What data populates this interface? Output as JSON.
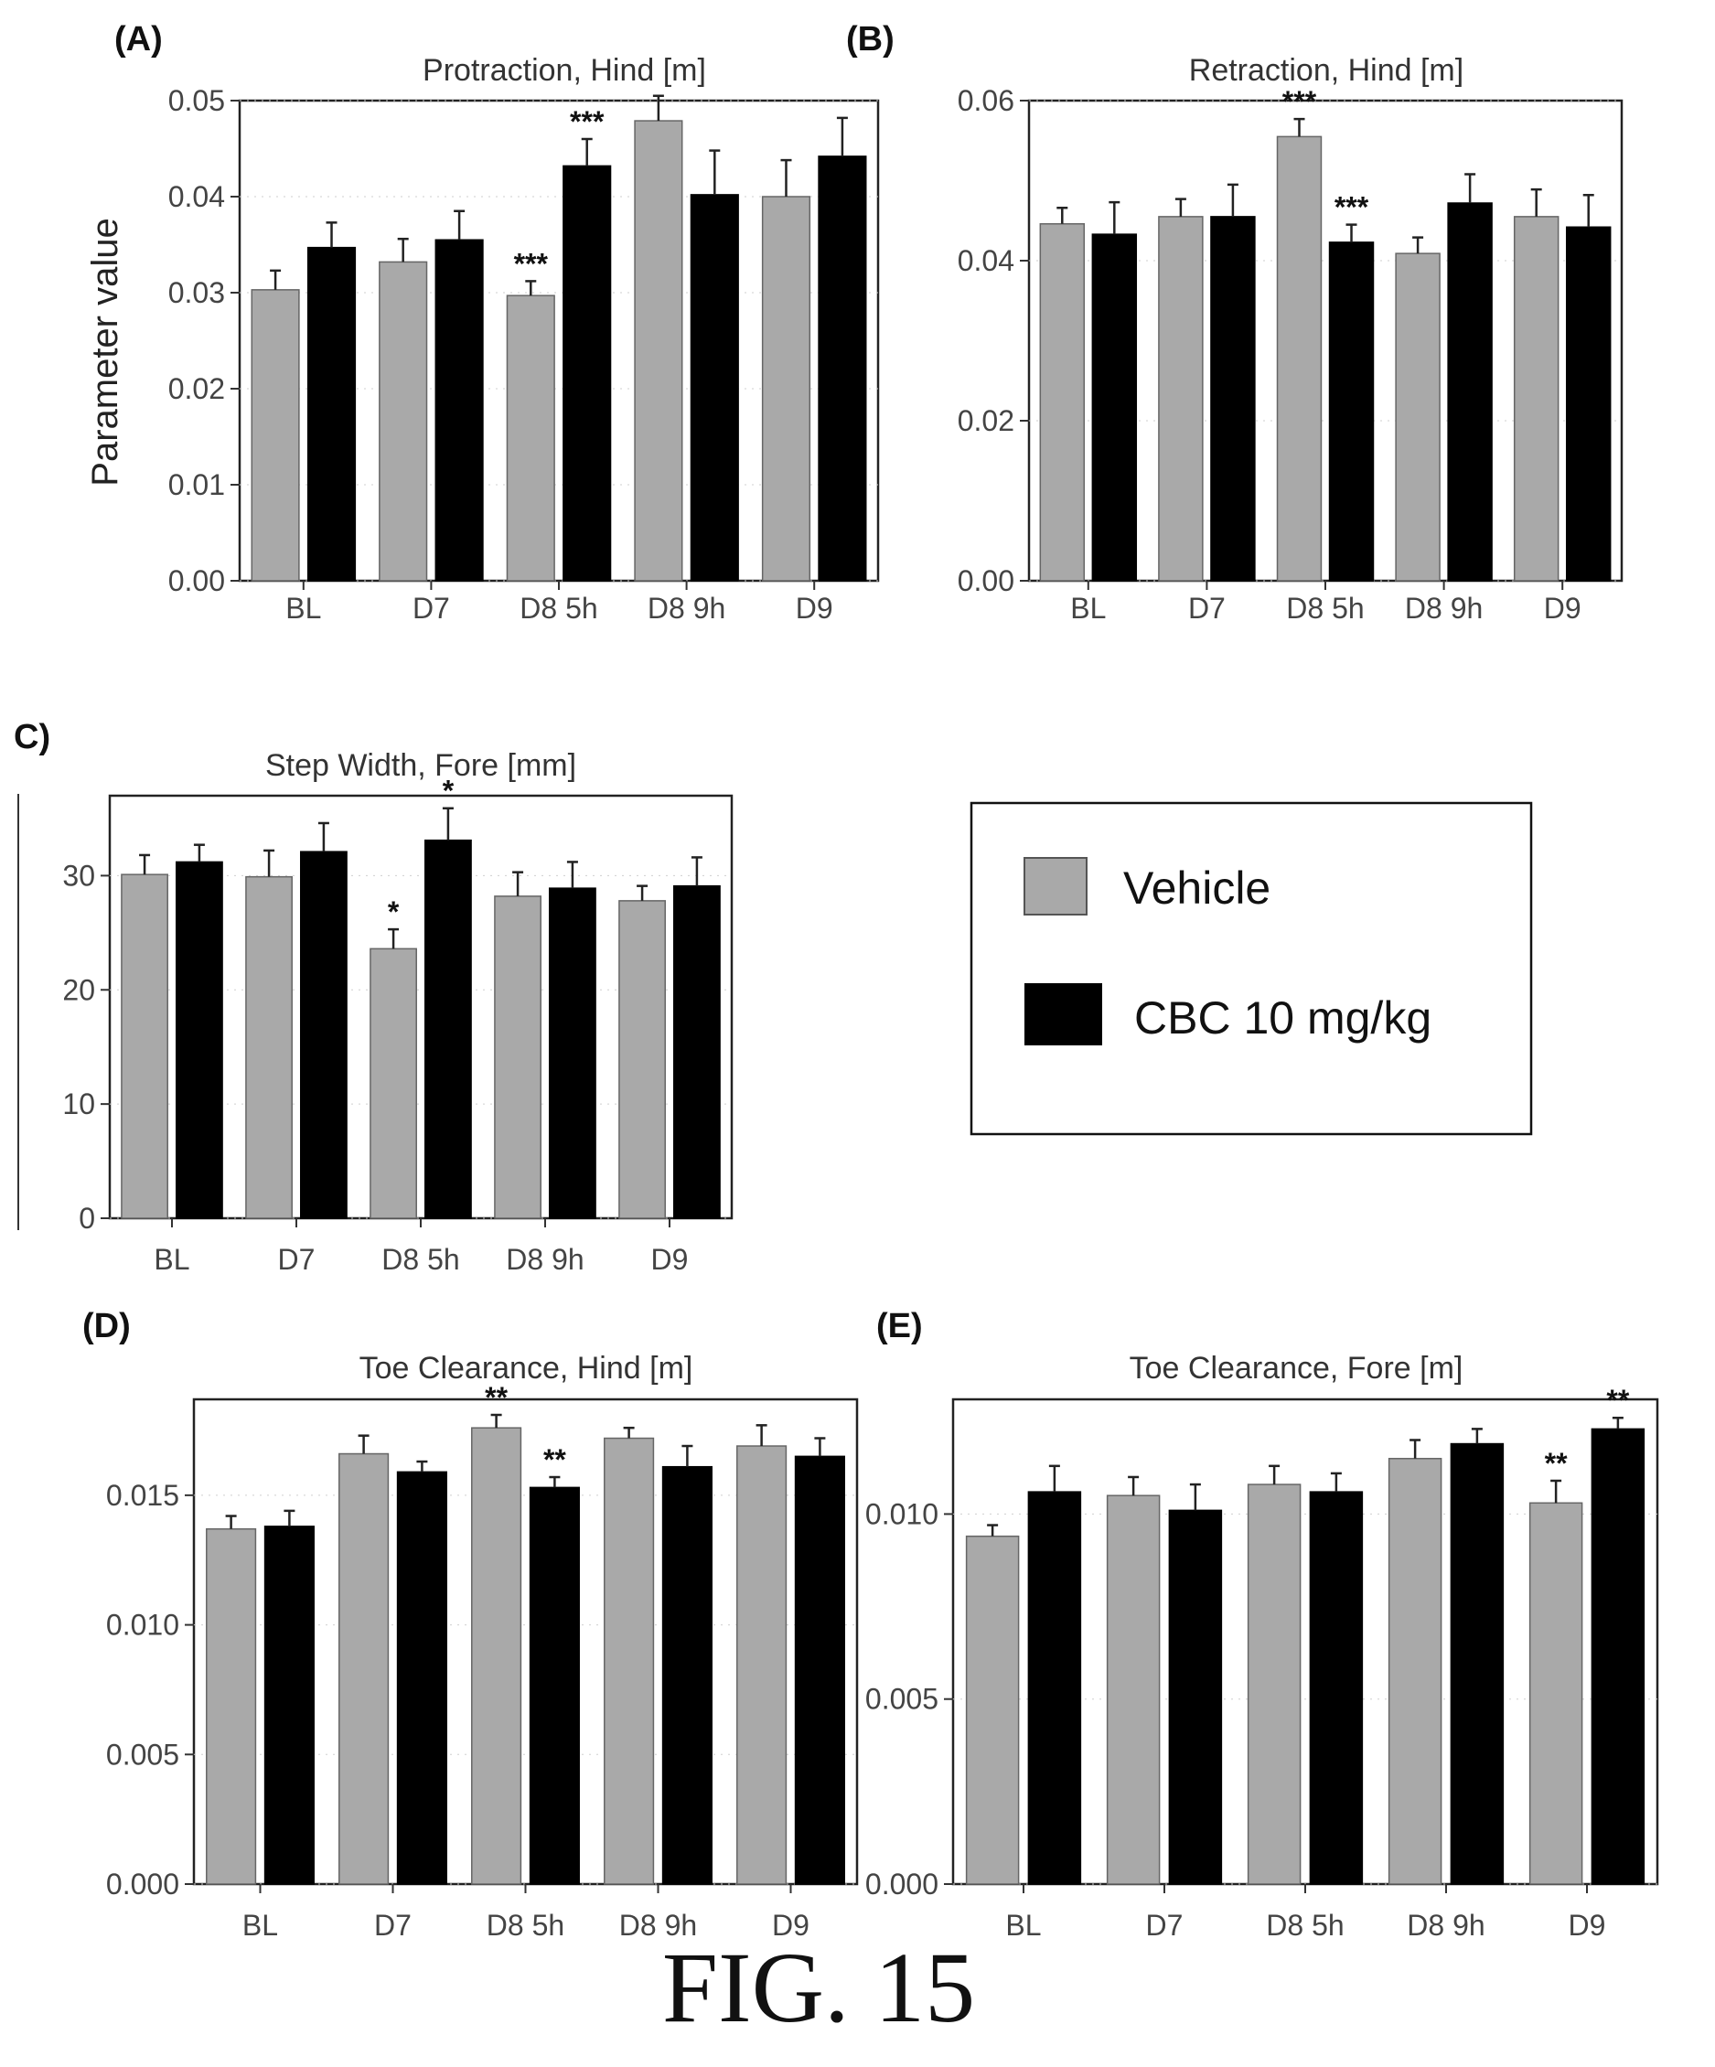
{
  "figure_caption": "FIG. 15",
  "legend": {
    "items": [
      {
        "label": "Vehicle",
        "color": "#a9a9a9"
      },
      {
        "label": "CBC 10 mg/kg",
        "color": "#000000"
      }
    ]
  },
  "colors": {
    "vehicle": "#a9a9a9",
    "cbc": "#000000"
  },
  "chart_data": [
    {
      "type": "bar",
      "panel": "(A)",
      "title": "Protraction, Hind [m]",
      "ylabel": "Parameter value",
      "categories": [
        "BL",
        "D7",
        "D8 5h",
        "D8 9h",
        "D9"
      ],
      "yticks": [
        "0.00",
        "0.01",
        "0.02",
        "0.03",
        "0.04",
        "0.05"
      ],
      "ylim": [
        0,
        0.05
      ],
      "series": [
        {
          "name": "Vehicle",
          "values": [
            0.0303,
            0.0332,
            0.0297,
            0.0479,
            0.04
          ],
          "errors": [
            0.002,
            0.0024,
            0.0015,
            0.0026,
            0.0038
          ],
          "sig": [
            "",
            "",
            "***",
            "",
            ""
          ]
        },
        {
          "name": "CBC 10 mg/kg",
          "values": [
            0.0347,
            0.0355,
            0.0432,
            0.0402,
            0.0442
          ],
          "errors": [
            0.0026,
            0.003,
            0.0028,
            0.0046,
            0.004
          ],
          "sig": [
            "",
            "",
            "***",
            "",
            ""
          ]
        }
      ]
    },
    {
      "type": "bar",
      "panel": "(B)",
      "title": "Retraction, Hind [m]",
      "ylabel": "",
      "categories": [
        "BL",
        "D7",
        "D8 5h",
        "D8 9h",
        "D9"
      ],
      "yticks": [
        "0.00",
        "0.02",
        "0.04",
        "0.06"
      ],
      "ylim": [
        0,
        0.06
      ],
      "series": [
        {
          "name": "Vehicle",
          "values": [
            0.0446,
            0.0455,
            0.0555,
            0.0409,
            0.0455
          ],
          "errors": [
            0.002,
            0.0022,
            0.0022,
            0.002,
            0.0034
          ],
          "sig": [
            "",
            "",
            "***",
            "",
            ""
          ]
        },
        {
          "name": "CBC 10 mg/kg",
          "values": [
            0.0433,
            0.0455,
            0.0423,
            0.0472,
            0.0442
          ],
          "errors": [
            0.004,
            0.004,
            0.0022,
            0.0036,
            0.004
          ],
          "sig": [
            "",
            "",
            "***",
            "",
            ""
          ]
        }
      ]
    },
    {
      "type": "bar",
      "panel": "C)",
      "title": "Step Width, Fore [mm]",
      "ylabel": "",
      "categories": [
        "BL",
        "D7",
        "D8 5h",
        "D8 9h",
        "D9"
      ],
      "yticks": [
        "0",
        "10",
        "20",
        "30"
      ],
      "ylim": [
        0,
        37
      ],
      "series": [
        {
          "name": "Vehicle",
          "values": [
            30.1,
            29.9,
            23.6,
            28.2,
            27.8
          ],
          "errors": [
            1.7,
            2.3,
            1.7,
            2.1,
            1.3
          ],
          "sig": [
            "",
            "",
            "*",
            "",
            ""
          ]
        },
        {
          "name": "CBC 10 mg/kg",
          "values": [
            31.2,
            32.1,
            33.1,
            28.9,
            29.1
          ],
          "errors": [
            1.5,
            2.5,
            2.8,
            2.3,
            2.5
          ],
          "sig": [
            "",
            "",
            "*",
            "",
            ""
          ]
        }
      ]
    },
    {
      "type": "bar",
      "panel": "(D)",
      "title": "Toe Clearance, Hind [m]",
      "ylabel": "",
      "categories": [
        "BL",
        "D7",
        "D8 5h",
        "D8 9h",
        "D9"
      ],
      "yticks": [
        "0.000",
        "0.005",
        "0.010",
        "0.015"
      ],
      "ylim": [
        0,
        0.0187
      ],
      "series": [
        {
          "name": "Vehicle",
          "values": [
            0.0137,
            0.0166,
            0.0176,
            0.0172,
            0.0169
          ],
          "errors": [
            0.0005,
            0.0007,
            0.0005,
            0.0004,
            0.0008
          ],
          "sig": [
            "",
            "",
            "**",
            "",
            ""
          ]
        },
        {
          "name": "CBC 10 mg/kg",
          "values": [
            0.0138,
            0.0159,
            0.0153,
            0.0161,
            0.0165
          ],
          "errors": [
            0.0006,
            0.0004,
            0.0004,
            0.0008,
            0.0007
          ],
          "sig": [
            "",
            "",
            "**",
            "",
            ""
          ]
        }
      ]
    },
    {
      "type": "bar",
      "panel": "(E)",
      "title": "Toe Clearance, Fore [m]",
      "ylabel": "",
      "categories": [
        "BL",
        "D7",
        "D8 5h",
        "D8 9h",
        "D9"
      ],
      "yticks": [
        "0.000",
        "0.005",
        "0.010"
      ],
      "ylim": [
        0,
        0.0131
      ],
      "series": [
        {
          "name": "Vehicle",
          "values": [
            0.0094,
            0.0105,
            0.0108,
            0.0115,
            0.0103
          ],
          "errors": [
            0.0003,
            0.0005,
            0.0005,
            0.0005,
            0.0006
          ],
          "sig": [
            "",
            "",
            "",
            "",
            "**"
          ]
        },
        {
          "name": "CBC 10 mg/kg",
          "values": [
            0.0106,
            0.0101,
            0.0106,
            0.0119,
            0.0123
          ],
          "errors": [
            0.0007,
            0.0007,
            0.0005,
            0.0004,
            0.0003
          ],
          "sig": [
            "",
            "",
            "",
            "",
            "**"
          ]
        }
      ]
    }
  ]
}
